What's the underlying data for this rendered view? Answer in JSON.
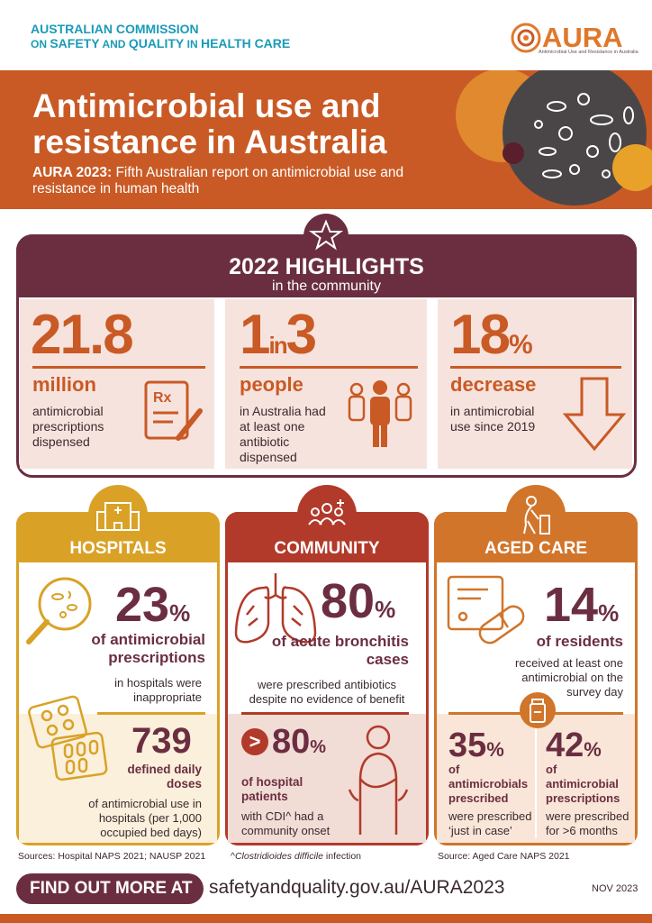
{
  "header": {
    "org_line1": "AUSTRALIAN COMMISSION",
    "org_line2_pre": "ON",
    "org_line2_mid": "SAFETY",
    "org_line2_and": "AND",
    "org_line2_q": "QUALITY",
    "org_line2_in": "IN",
    "org_line2_end": "HEALTH CARE",
    "logo_text": "AURA",
    "logo_sub": "Antimicrobial Use and Resistance in Australia"
  },
  "banner": {
    "title_line1": "Antimicrobial use and",
    "title_line2": "resistance in Australia",
    "sub_bold": "AURA 2023:",
    "sub_rest": " Fifth Australian report on antimicrobial use and resistance in human health"
  },
  "highlights": {
    "title": "2022 HIGHLIGHTS",
    "subtitle": "in the community",
    "items": [
      {
        "big": "21.8",
        "unit": "million",
        "desc": "antimicrobial prescriptions dispensed",
        "icon": "prescription-icon"
      },
      {
        "big_a": "1",
        "big_mid": "in",
        "big_b": "3",
        "unit": "people",
        "desc": "in Australia had at least one antibiotic dispensed",
        "icon": "people-icon"
      },
      {
        "big": "18",
        "pct": "%",
        "unit": "decrease",
        "desc": "in antimicrobial use since 2019",
        "icon": "down-arrow-icon"
      }
    ]
  },
  "hospitals": {
    "title": "HOSPITALS",
    "stat1": "23",
    "stat1_pct": "%",
    "stat1_label": "of antimicrobial prescriptions",
    "stat1_desc": "in hospitals were inappropriate",
    "stat2": "739",
    "stat2_label": "defined daily doses",
    "stat2_desc": "of antimicrobial use in hospitals (per 1,000 occupied bed days)",
    "source": "Sources: Hospital NAPS 2021; NAUSP 2021"
  },
  "community": {
    "title": "COMMUNITY",
    "stat1": "80",
    "stat1_pct": "%",
    "stat1_label": "of acute bronchitis cases",
    "stat1_desc": "were prescribed antibiotics despite no evidence of benefit",
    "stat2_sym": ">",
    "stat2": "80",
    "stat2_pct": "%",
    "stat2_label": "of hospital patients",
    "stat2_desc": "with CDI^ had a community onset",
    "footnote_pre": "^",
    "footnote_italic": "Clostridioides difficile",
    "footnote_rest": " infection"
  },
  "aged_care": {
    "title": "AGED CARE",
    "stat1": "14",
    "stat1_pct": "%",
    "stat1_label": "of residents",
    "stat1_desc": "received at least one antimicrobial on the survey day",
    "stat2": "35",
    "stat2_pct": "%",
    "stat2_label": "of antimicrobials prescribed",
    "stat2_desc": "were prescribed ‘just in case’",
    "stat3": "42",
    "stat3_pct": "%",
    "stat3_label": "of antimicrobial prescriptions",
    "stat3_desc": "were prescribed for >6 months",
    "source": "Source: Aged Care NAPS 2021"
  },
  "footer": {
    "find_label": "FIND OUT MORE AT",
    "url": "safetyandquality.gov.au/AURA2023",
    "date": "NOV 2023"
  },
  "colors": {
    "orange": "#c95a25",
    "maroon": "#6b2e40",
    "gold": "#d9a227",
    "red": "#b23a2a",
    "teal": "#1a9bb8",
    "pink_bg": "#f7e3de"
  }
}
